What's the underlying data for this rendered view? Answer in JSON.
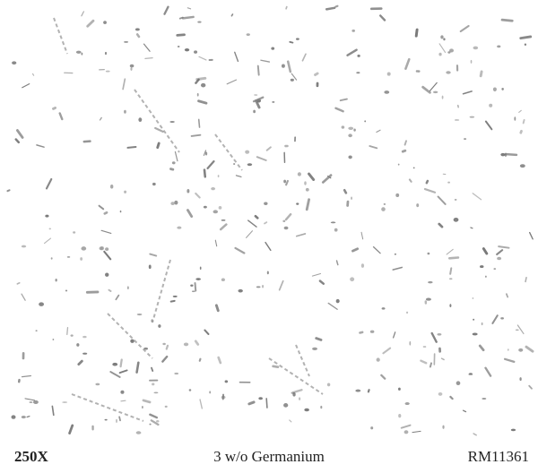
{
  "caption": {
    "magnification": "250X",
    "description": "3 w/o Germanium",
    "reference": "RM11361"
  }
}
